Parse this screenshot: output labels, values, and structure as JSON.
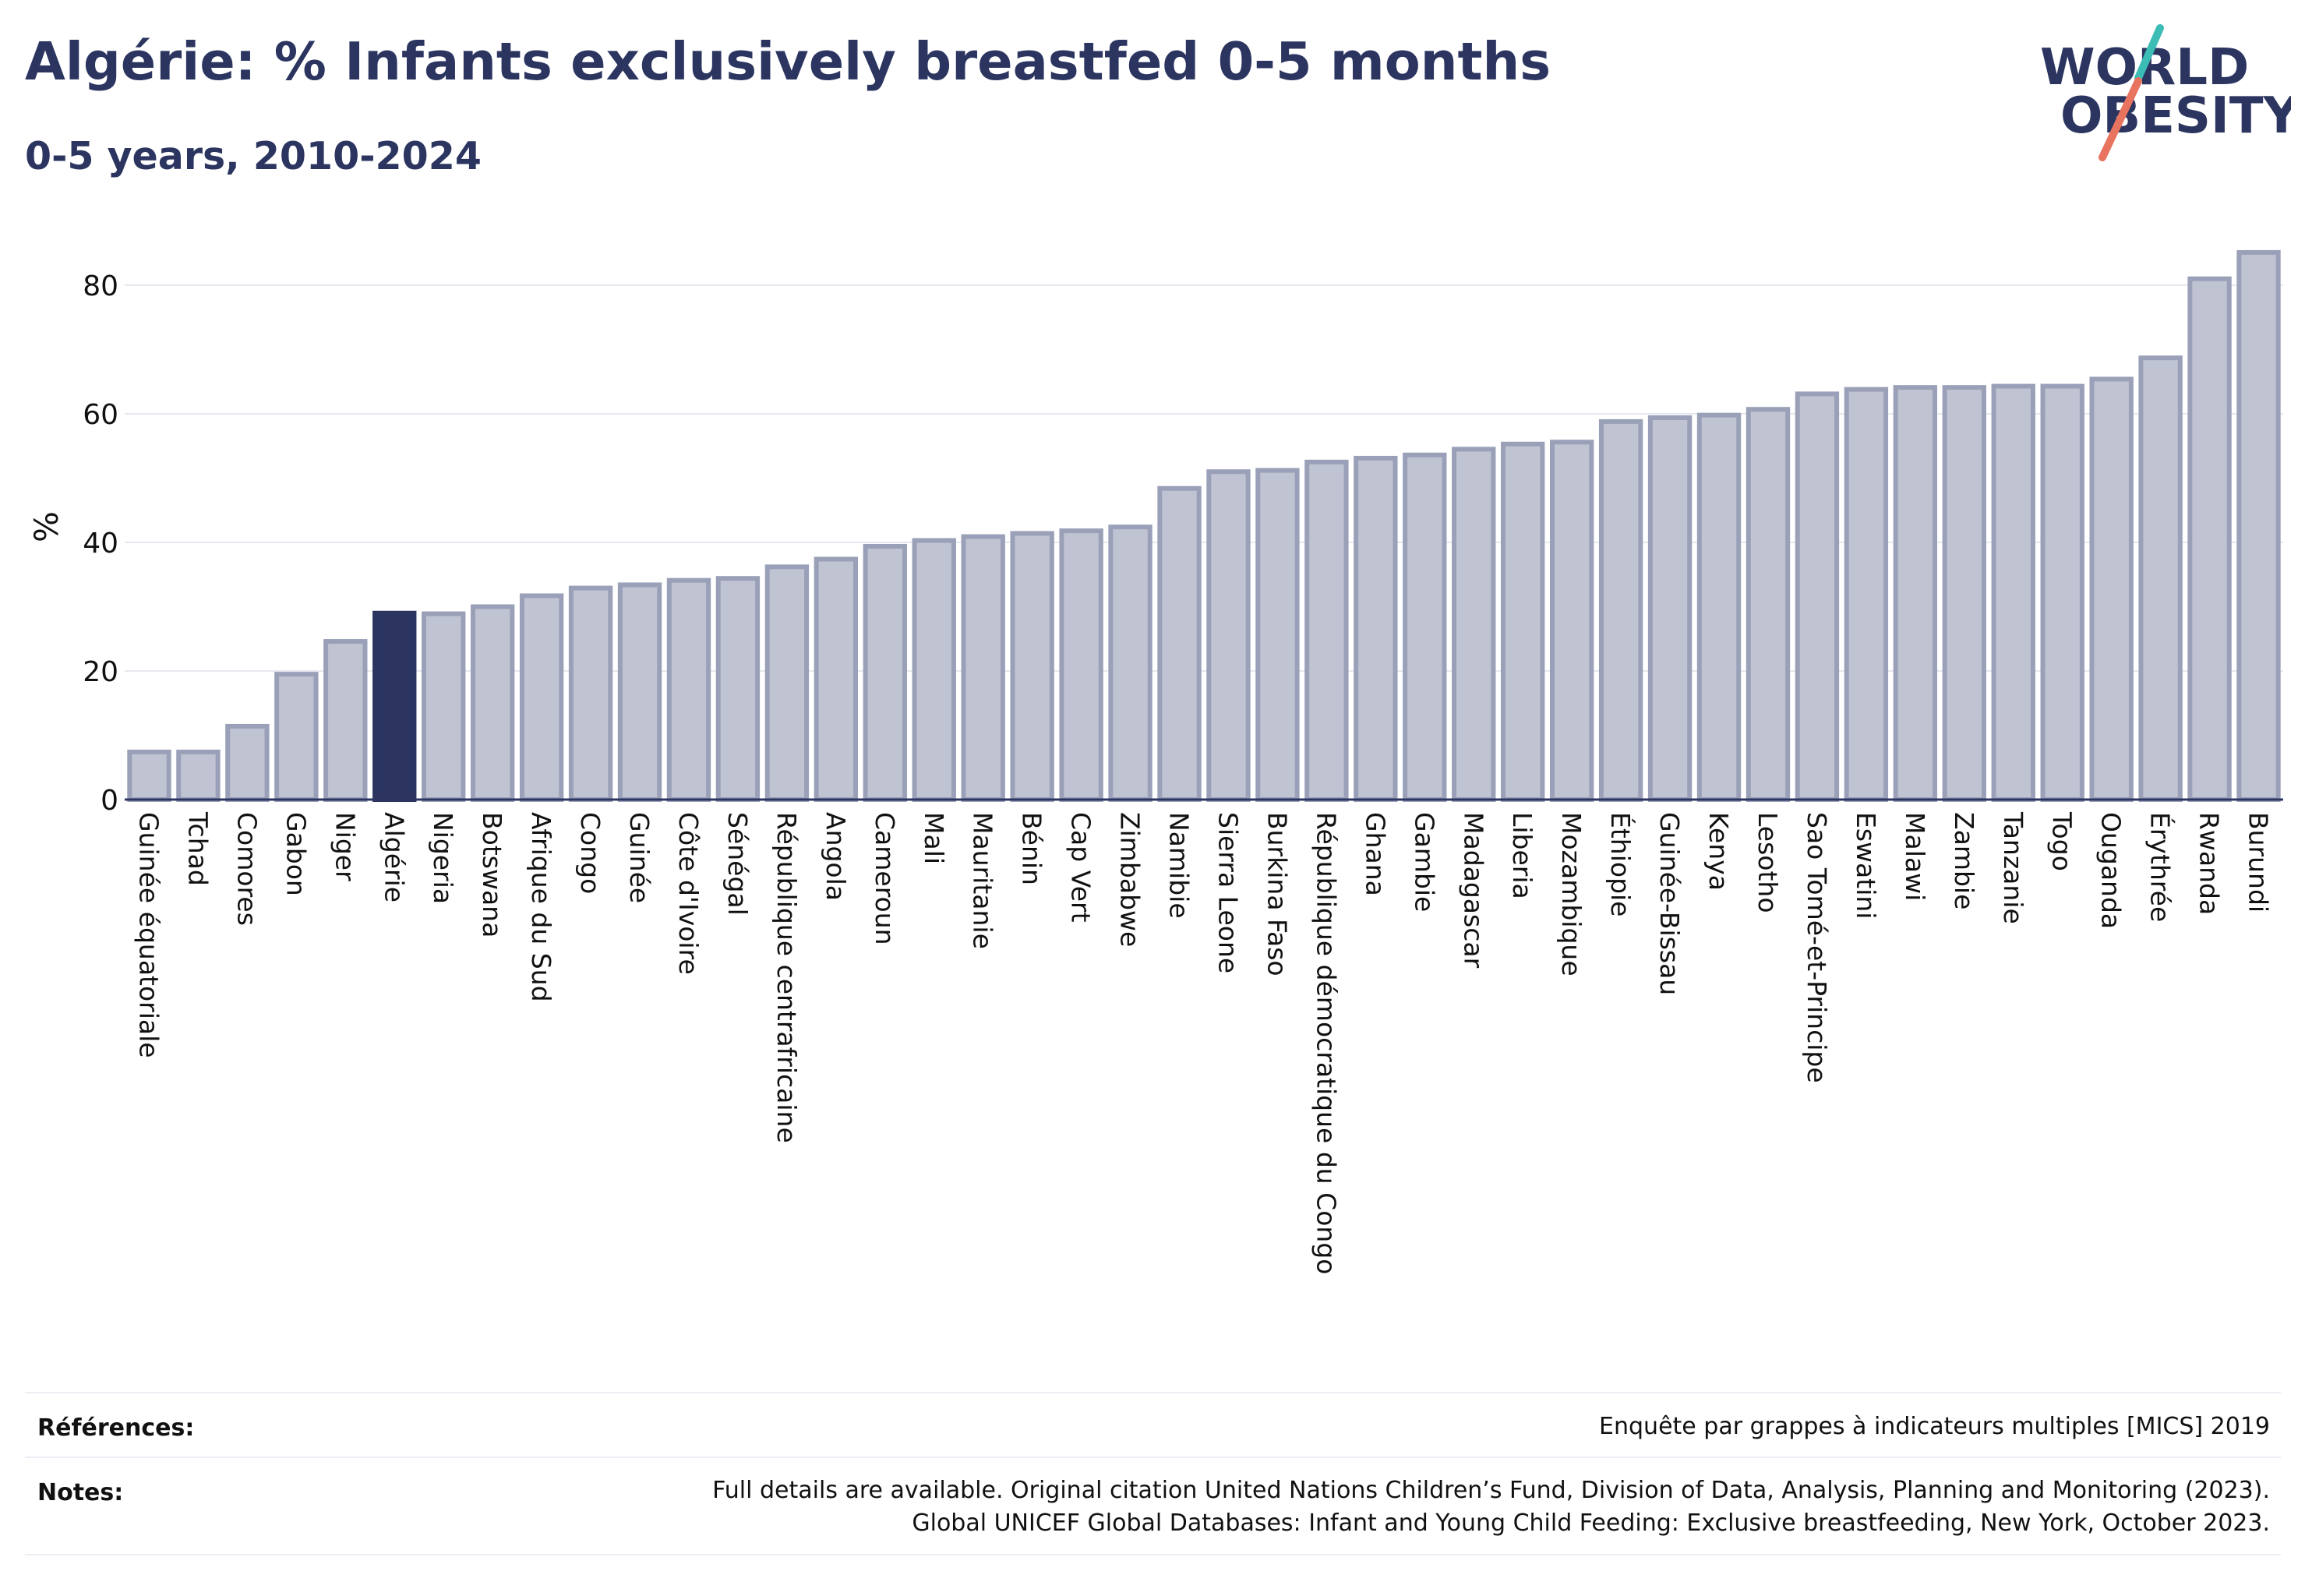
{
  "title": "Algérie: % Infants exclusively breastfed 0-5 months",
  "subtitle": "0-5 years, 2010-2024",
  "logo": {
    "line1": "WORLD",
    "line2": "OBESITY"
  },
  "colors": {
    "bar": "#c0c4d2",
    "bar_border": "#9aa0b8",
    "highlight": "#2b3560",
    "text": "#2b3560",
    "accent_teal": "#3bbcb4",
    "accent_coral": "#e8735f"
  },
  "chart_data": {
    "type": "bar",
    "ylabel": "%",
    "ylim": [
      0,
      88
    ],
    "yticks": [
      0,
      20,
      40,
      60,
      80
    ],
    "grid": true,
    "highlight_category": "Algérie",
    "categories": [
      "Guinée équatoriale",
      "Tchad",
      "Comores",
      "Gabon",
      "Niger",
      "Algérie",
      "Nigeria",
      "Botswana",
      "Afrique du Sud",
      "Congo",
      "Guinée",
      "Côte d'Ivoire",
      "Sénégal",
      "République centrafricaine",
      "Angola",
      "Cameroun",
      "Mali",
      "Mauritanie",
      "Bénin",
      "Cap Vert",
      "Zimbabwe",
      "Namibie",
      "Sierra Leone",
      "Burkina Faso",
      "République démocratique du Congo",
      "Ghana",
      "Gambie",
      "Madagascar",
      "Liberia",
      "Mozambique",
      "Éthiopie",
      "Guinée-Bissau",
      "Kenya",
      "Lesotho",
      "Sao Tomé-et-Principe",
      "Eswatini",
      "Malawi",
      "Zambie",
      "Tanzanie",
      "Togo",
      "Ouganda",
      "Érythrée",
      "Rwanda",
      "Burundi"
    ],
    "values": [
      7.4,
      7.4,
      11.4,
      19.5,
      24.6,
      29.0,
      28.9,
      30.0,
      31.7,
      32.9,
      33.4,
      34.1,
      34.4,
      36.2,
      37.4,
      39.4,
      40.3,
      40.9,
      41.4,
      41.8,
      42.4,
      48.4,
      51.0,
      51.2,
      52.5,
      53.1,
      53.6,
      54.5,
      55.3,
      55.6,
      58.8,
      59.4,
      59.8,
      60.7,
      63.1,
      63.8,
      64.1,
      64.1,
      64.3,
      64.3,
      65.4,
      68.7,
      81.0,
      85.1
    ]
  },
  "footer": {
    "references_label": "Références:",
    "references_text": "Enquête par grappes à indicateurs multiples [MICS] 2019",
    "notes_label": "Notes:",
    "notes_line1": "Full details are available. Original citation United Nations Children’s Fund, Division of Data, Analysis, Planning and Monitoring (2023).",
    "notes_line2": "Global UNICEF Global Databases: Infant and Young Child Feeding: Exclusive breastfeeding, New York, October 2023."
  }
}
